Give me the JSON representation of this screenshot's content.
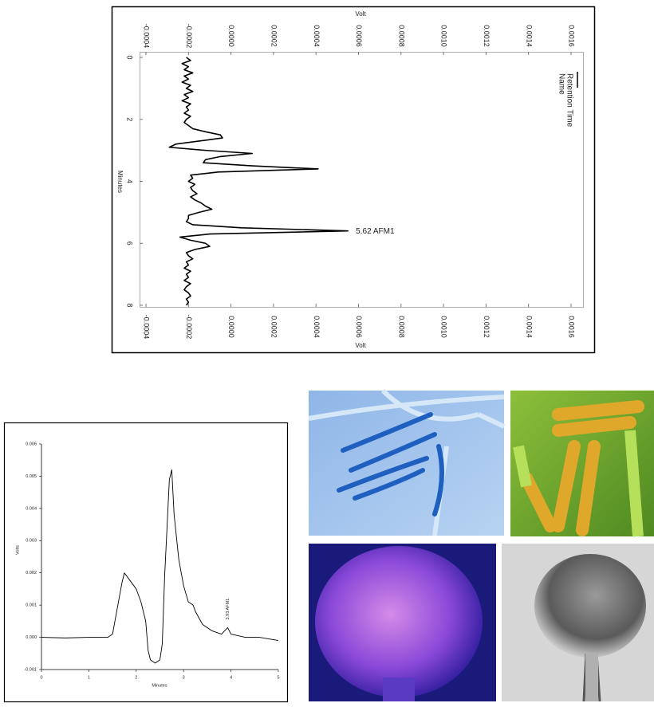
{
  "chart_data": [
    {
      "type": "line",
      "orientation": "vertical",
      "color": "#000000",
      "xlabel": "Minutes",
      "ylabel": "Volt",
      "legend_labels": [
        "Retention Time",
        "Name"
      ],
      "annotation": "5.62  AFM1",
      "annotation_x": 5.62,
      "x": [
        0,
        0.1,
        0.2,
        0.3,
        0.4,
        0.5,
        0.6,
        0.7,
        0.8,
        0.9,
        1,
        1.1,
        1.2,
        1.3,
        1.4,
        1.5,
        1.6,
        1.7,
        1.8,
        1.9,
        2,
        2.1,
        2.2,
        2.3,
        2.4,
        2.5,
        2.6,
        2.7,
        2.8,
        2.9,
        3,
        3.1,
        3.2,
        3.3,
        3.4,
        3.5,
        3.6,
        3.7,
        3.8,
        3.9,
        4,
        4.1,
        4.2,
        4.3,
        4.4,
        4.5,
        4.6,
        4.7,
        4.8,
        4.9,
        5,
        5.1,
        5.2,
        5.3,
        5.4,
        5.5,
        5.6,
        5.7,
        5.8,
        5.9,
        6,
        6.1,
        6.2,
        6.3,
        6.4,
        6.5,
        6.6,
        6.7,
        6.8,
        6.9,
        7,
        7.1,
        7.2,
        7.3,
        7.4,
        7.5,
        7.6,
        7.7,
        7.8,
        7.9,
        8
      ],
      "values": [
        -0.00021,
        -0.00019,
        -0.00023,
        -0.0002,
        -0.00022,
        -0.00018,
        -0.00022,
        -0.0002,
        -0.00023,
        -0.00019,
        -0.00021,
        -0.00018,
        -0.00022,
        -0.0002,
        -0.00023,
        -0.00019,
        -0.00021,
        -0.0002,
        -0.00022,
        -0.00019,
        -0.00021,
        -0.00022,
        -0.0002,
        -0.00018,
        -0.00012,
        -5e-05,
        -4e-05,
        -0.00015,
        -0.00026,
        -0.00029,
        -0.00012,
        0.0001,
        -5e-05,
        -0.00012,
        -0.00013,
        0.0001,
        0.00041,
        -6e-05,
        -0.00019,
        -0.00018,
        -0.0002,
        -0.00017,
        -0.00019,
        -0.00018,
        -0.00016,
        -0.00019,
        -0.00017,
        -0.00014,
        -0.00012,
        -9e-05,
        -0.00015,
        -0.0002,
        -0.0002,
        -0.00021,
        -0.00018,
        5e-05,
        0.00055,
        -0.0001,
        -0.00024,
        -0.00019,
        -0.00012,
        -0.0001,
        -0.00017,
        -0.00021,
        -0.0002,
        -0.00018,
        -0.00021,
        -0.0002,
        -0.00022,
        -0.00019,
        -0.00021,
        -0.0002,
        -0.00022,
        -0.00019,
        -0.00021,
        -0.00022,
        -0.0002,
        -0.00019,
        -0.00021,
        -0.0002,
        -0.00021
      ],
      "xlim": [
        0,
        8
      ],
      "xticks": [
        0,
        2,
        4,
        6,
        8
      ],
      "ylim": [
        -0.0004,
        0.0016
      ],
      "yticks": [
        {
          "value": -0.0004,
          "label": "-0.0004"
        },
        {
          "value": -0.0002,
          "label": "-0.0002"
        },
        {
          "value": 0,
          "label": "0.0000"
        },
        {
          "value": 0.0002,
          "label": "0.0002"
        },
        {
          "value": 0.0004,
          "label": "0.0004"
        },
        {
          "value": 0.0006,
          "label": "0.0006"
        },
        {
          "value": 0.0008,
          "label": "0.0008"
        },
        {
          "value": 0.001,
          "label": "0.0010"
        },
        {
          "value": 0.0012,
          "label": "0.0012"
        },
        {
          "value": 0.0014,
          "label": "0.0014"
        },
        {
          "value": 0.0016,
          "label": "0.0016"
        }
      ]
    },
    {
      "type": "line",
      "orientation": "horizontal",
      "color": "#000000",
      "xlabel": "Minutes",
      "ylabel": "Volts",
      "annotation": "3.93  AFM1",
      "annotation_x": 3.93,
      "x": [
        0,
        0.5,
        1,
        1.4,
        1.5,
        1.6,
        1.7,
        1.75,
        1.85,
        2,
        2.1,
        2.2,
        2.25,
        2.3,
        2.4,
        2.5,
        2.55,
        2.6,
        2.7,
        2.75,
        2.8,
        2.9,
        3,
        3.1,
        3.2,
        3.25,
        3.4,
        3.6,
        3.8,
        3.93,
        4,
        4.3,
        4.6,
        5
      ],
      "values": [
        0,
        -2e-05,
        0,
        0,
        0.0001,
        0.0009,
        0.0017,
        0.002,
        0.0018,
        0.0015,
        0.0011,
        0.0005,
        -0.0004,
        -0.0007,
        -0.0008,
        -0.0007,
        -0.0002,
        0.0019,
        0.0049,
        0.0052,
        0.0038,
        0.0024,
        0.0016,
        0.0011,
        0.001,
        0.0008,
        0.0004,
        0.0002,
        0.0001,
        0.0003,
        0.0001,
        0,
        0,
        -0.0001
      ],
      "xlim": [
        0,
        5
      ],
      "xticks": [
        0,
        1,
        2,
        3,
        4,
        5
      ],
      "ylim": [
        -0.001,
        0.006
      ],
      "yticks": [
        {
          "value": -0.001,
          "label": "-0.001"
        },
        {
          "value": 0,
          "label": "0.000"
        },
        {
          "value": 0.001,
          "label": "0.001"
        },
        {
          "value": 0.002,
          "label": "0.002"
        },
        {
          "value": 0.003,
          "label": "0.003"
        },
        {
          "value": 0.004,
          "label": "0.004"
        },
        {
          "value": 0.005,
          "label": "0.005"
        },
        {
          "value": 0.006,
          "label": "0.006"
        }
      ]
    }
  ]
}
